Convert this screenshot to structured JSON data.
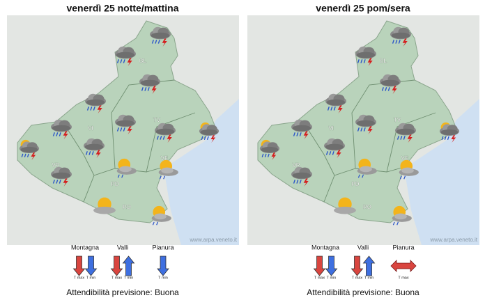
{
  "panels": [
    {
      "title": "venerdì 25 notte/mattina",
      "provinces": [
        "BL",
        "TV",
        "VI",
        "VE",
        "VR",
        "PD",
        "RO"
      ],
      "watermark": "www.arpa.veneto.it",
      "trend": [
        {
          "zone": "Montagna",
          "labels": [
            "T max",
            "T min"
          ]
        },
        {
          "zone": "Valli",
          "labels": [
            "T max",
            "T min"
          ]
        },
        {
          "zone": "Pianura",
          "labels": [
            "T min"
          ]
        }
      ],
      "reliability": "Attendibilità previsione: Buona"
    },
    {
      "title": "venerdì 25 pom/sera",
      "provinces": [
        "BL",
        "TV",
        "VI",
        "VE",
        "VR",
        "PD",
        "RO"
      ],
      "watermark": "www.arpa.veneto.it",
      "trend": [
        {
          "zone": "Montagna",
          "labels": [
            "T max",
            "T min"
          ]
        },
        {
          "zone": "Valli",
          "labels": [
            "T max",
            "T min"
          ]
        },
        {
          "zone": "Pianura",
          "labels": [
            "T max"
          ]
        }
      ],
      "reliability": "Attendibilità previsione: Buona"
    }
  ]
}
